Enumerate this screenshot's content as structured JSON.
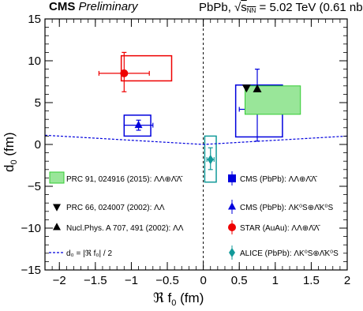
{
  "header": {
    "experiment": "CMS",
    "status": "Preliminary",
    "system_label": "PbPb,",
    "energy_value": "= 5.02 TeV (0.61 nb"
  },
  "chart_data": {
    "type": "scatter",
    "title": "",
    "xlabel": "ℜ f₀ (fm)",
    "ylabel": "d₀ (fm)",
    "xlim": [
      -2.2,
      2.0
    ],
    "ylim": [
      -15,
      15
    ],
    "x_ticks": [
      "−2",
      "−1.5",
      "−1",
      "−0.5",
      "0",
      "0.5",
      "1",
      "1.5",
      "2"
    ],
    "y_ticks": [
      "−15",
      "−10",
      "−5",
      "0",
      "5",
      "10",
      "15"
    ],
    "x_tick_values": [
      -2,
      -1.5,
      -1,
      -0.5,
      0,
      0.5,
      1,
      1.5,
      2
    ],
    "y_tick_values": [
      -15,
      -10,
      -5,
      0,
      5,
      10,
      15
    ],
    "series": [
      {
        "name": "CMS (PbPb): ΛΛ⊕Λ̄Λ̄",
        "marker": "square",
        "color": "#0000dd",
        "x": 0.75,
        "y": 4.2,
        "x_err": [
          0.25,
          0.3
        ],
        "y_err": [
          3.8,
          4.8
        ],
        "sys_box": {
          "x": [
            0.45,
            1.1
          ],
          "y": [
            0.9,
            7.1
          ],
          "style": "outline"
        }
      },
      {
        "name": "CMS (PbPb): ΛK⁰S⊕Λ̄K⁰S",
        "marker": "triangle-up",
        "color": "#0000dd",
        "x": -0.9,
        "y": 2.3,
        "x_err": [
          0.2,
          0.2
        ],
        "y_err": [
          0.6,
          0.6
        ],
        "sys_box": {
          "x": [
            -1.1,
            -0.73
          ],
          "y": [
            1.0,
            3.5
          ],
          "style": "outline"
        }
      },
      {
        "name": "STAR (AuAu): ΛΛ⊕Λ̄Λ̄",
        "marker": "circle",
        "color": "#ee0000",
        "x": -1.1,
        "y": 8.5,
        "x_err": [
          0.35,
          0.35
        ],
        "y_err": [
          2.2,
          2.5
        ],
        "sys_box": {
          "x": [
            -1.14,
            -0.44
          ],
          "y": [
            7.6,
            10.6
          ],
          "style": "outline"
        }
      },
      {
        "name": "ALICE (PbPb): ΛK⁰S⊕Λ̄K⁰S",
        "marker": "diamond",
        "color": "#119999",
        "x": 0.1,
        "y": -1.8,
        "x_err": [
          0.05,
          0.05
        ],
        "y_err": [
          1.2,
          1.4
        ],
        "sys_box": {
          "x": [
            0.02,
            0.18
          ],
          "y": [
            -4.5,
            1.0
          ],
          "style": "outline"
        }
      },
      {
        "name": "PRC 91, 024916 (2015): ΛΛ⊕Λ̄Λ̄",
        "marker": "filled-box",
        "color": "#33cc33",
        "box": {
          "x": [
            0.58,
            1.35
          ],
          "y": [
            3.6,
            7.0
          ]
        }
      },
      {
        "name": "PRC 66, 024007 (2002): ΛΛ",
        "marker": "triangle-down",
        "color": "#000000",
        "points": [
          [
            0.6,
            6.8
          ]
        ]
      },
      {
        "name": "Nucl.Phys. A 707, 491 (2002): ΛΛ",
        "marker": "triangle-up",
        "color": "#000000",
        "points": [
          [
            0.75,
            6.6
          ]
        ]
      },
      {
        "name": "d₀ = |ℜ f₀| / 2",
        "marker": "dashed-line",
        "color": "#0000dd",
        "curve": [
          [
            -2.2,
            1.1
          ],
          [
            0,
            0
          ],
          [
            2.0,
            1.0
          ]
        ]
      }
    ],
    "legend": {
      "left": [
        {
          "text": "PRC 91, 024916 (2015): ΛΛ⊕Λ̄Λ̄",
          "symbol": "green-box"
        },
        {
          "text": "PRC 66, 024007 (2002): ΛΛ",
          "symbol": "triangle-down-black"
        },
        {
          "text": "Nucl.Phys. A 707, 491 (2002): ΛΛ",
          "symbol": "triangle-up-black"
        },
        {
          "text": "d₀ = |ℜ f₀| / 2",
          "symbol": "dashed-blue"
        }
      ],
      "right": [
        {
          "text": "CMS (PbPb): ΛΛ⊕Λ̄Λ̄",
          "symbol": "square-blue"
        },
        {
          "text": "CMS (PbPb): ΛK⁰S⊕Λ̄K⁰S",
          "symbol": "triangle-up-blue"
        },
        {
          "text": "STAR (AuAu): ΛΛ⊕Λ̄Λ̄",
          "symbol": "circle-red"
        },
        {
          "text": "ALICE (PbPb): ΛK⁰S⊕Λ̄K⁰S",
          "symbol": "diamond-teal"
        }
      ]
    },
    "reference_lines": {
      "vertical_x": 0,
      "style": "dashed-black"
    },
    "grid": false
  }
}
